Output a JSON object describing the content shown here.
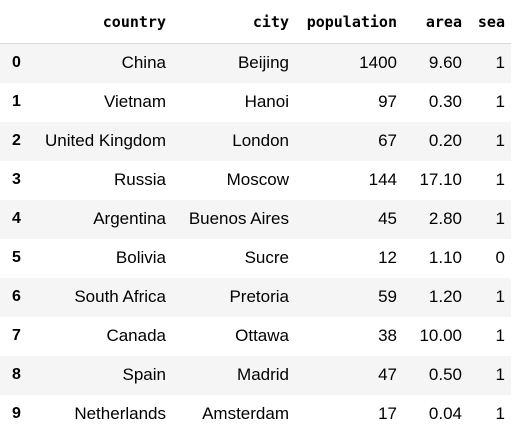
{
  "table": {
    "columns": [
      "",
      "country",
      "city",
      "population",
      "area",
      "sea"
    ],
    "rows": [
      {
        "index": "0",
        "country": "China",
        "city": "Beijing",
        "population": "1400",
        "area": "9.60",
        "sea": "1"
      },
      {
        "index": "1",
        "country": "Vietnam",
        "city": "Hanoi",
        "population": "97",
        "area": "0.30",
        "sea": "1"
      },
      {
        "index": "2",
        "country": "United Kingdom",
        "city": "London",
        "population": "67",
        "area": "0.20",
        "sea": "1"
      },
      {
        "index": "3",
        "country": "Russia",
        "city": "Moscow",
        "population": "144",
        "area": "17.10",
        "sea": "1"
      },
      {
        "index": "4",
        "country": "Argentina",
        "city": "Buenos Aires",
        "population": "45",
        "area": "2.80",
        "sea": "1"
      },
      {
        "index": "5",
        "country": "Bolivia",
        "city": "Sucre",
        "population": "12",
        "area": "1.10",
        "sea": "0"
      },
      {
        "index": "6",
        "country": "South Africa",
        "city": "Pretoria",
        "population": "59",
        "area": "1.20",
        "sea": "1"
      },
      {
        "index": "7",
        "country": "Canada",
        "city": "Ottawa",
        "population": "38",
        "area": "10.00",
        "sea": "1"
      },
      {
        "index": "8",
        "country": "Spain",
        "city": "Madrid",
        "population": "47",
        "area": "0.50",
        "sea": "1"
      },
      {
        "index": "9",
        "country": "Netherlands",
        "city": "Amsterdam",
        "population": "17",
        "area": "0.04",
        "sea": "1"
      }
    ]
  }
}
